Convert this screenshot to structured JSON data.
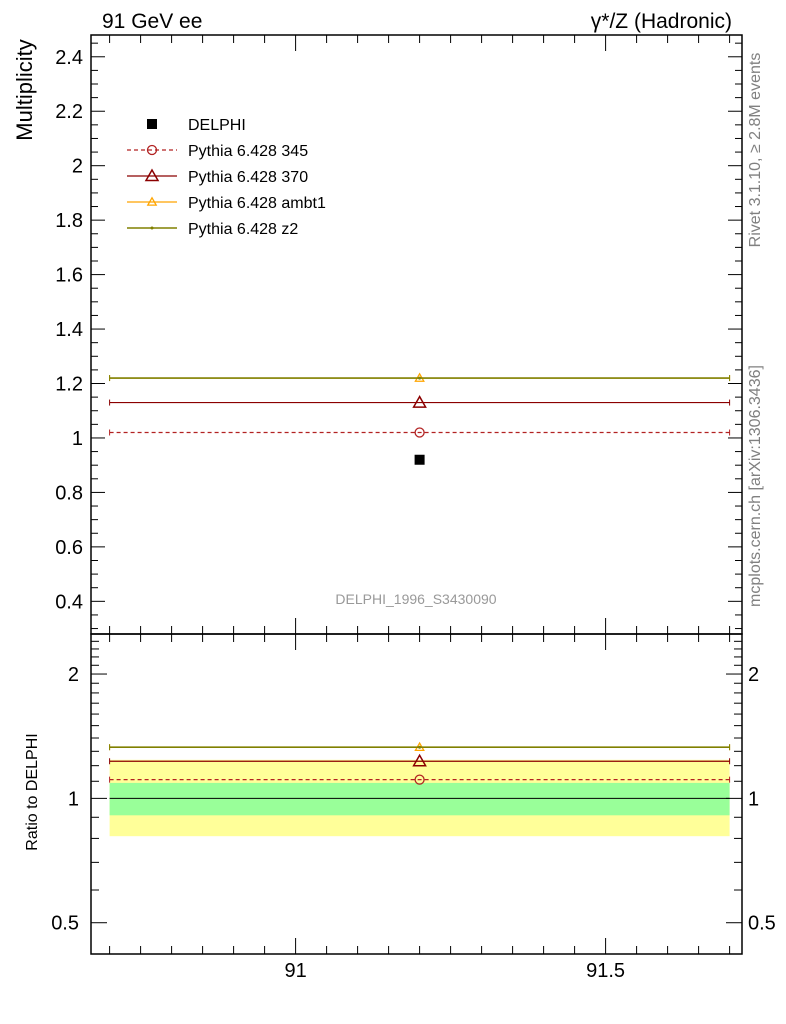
{
  "header": {
    "left": "91 GeV ee",
    "right": "γ*/Z (Hadronic)"
  },
  "side_labels": {
    "rivet": "Rivet 3.1.10, ≥ 2.8M events",
    "mcplots": "mcplots.cern.ch [arXiv:1306.3436]"
  },
  "colors": {
    "data": "#000000",
    "p345": "#b22222",
    "p370": "#8b0000",
    "ambt1": "#ffa500",
    "z2": "#808000",
    "band_inner": "#99ff99",
    "band_outer": "#ffff99"
  },
  "chart_data": [
    {
      "type": "scatter",
      "panel": "main",
      "ylabel": "Multiplicity",
      "annotation": "DELPHI_1996_S3430090",
      "xlim": [
        90.67,
        91.72
      ],
      "ylim": [
        0.28,
        2.48
      ],
      "yticks": [
        0.4,
        0.6,
        0.8,
        1,
        1.2,
        1.4,
        1.6,
        1.8,
        2,
        2.2,
        2.4
      ],
      "ytick_labels": [
        "0.4",
        "0.6",
        "0.8",
        "1",
        "1.2",
        "1.4",
        "1.6",
        "1.8",
        "2",
        "2.2",
        "2.4"
      ],
      "legend_position": "top-left",
      "series": [
        {
          "name": "DELPHI",
          "key": "data",
          "x": [
            91.2
          ],
          "y": [
            0.92
          ],
          "xerr": null
        },
        {
          "name": "Pythia 6.428 345",
          "key": "p345",
          "x": [
            91.2
          ],
          "y": [
            1.02
          ],
          "xrange": [
            90.7,
            91.7
          ]
        },
        {
          "name": "Pythia 6.428 370",
          "key": "p370",
          "x": [
            91.2
          ],
          "y": [
            1.13
          ],
          "xrange": [
            90.7,
            91.7
          ]
        },
        {
          "name": "Pythia 6.428 ambt1",
          "key": "ambt1",
          "x": [
            91.2
          ],
          "y": [
            1.22
          ],
          "xrange": [
            90.7,
            91.7
          ]
        },
        {
          "name": "Pythia 6.428 z2",
          "key": "z2",
          "x": [
            91.2
          ],
          "y": [
            1.22
          ],
          "xrange": [
            90.7,
            91.7
          ]
        }
      ]
    },
    {
      "type": "scatter",
      "panel": "ratio",
      "ylabel": "Ratio to DELPHI",
      "xlabel": "",
      "xlim": [
        90.67,
        91.72
      ],
      "ylim": [
        0.42,
        2.5
      ],
      "ytick_labels_shown": [
        "0.5",
        "1",
        "2"
      ],
      "xticks": [
        91,
        91.5
      ],
      "xtick_labels": [
        "91",
        "91.5"
      ],
      "reference_line": 1,
      "band_inner": [
        0.91,
        1.09
      ],
      "band_outer": [
        0.81,
        1.24
      ],
      "series": [
        {
          "name": "Pythia 6.428 345",
          "key": "p345",
          "y": [
            1.11
          ]
        },
        {
          "name": "Pythia 6.428 370",
          "key": "p370",
          "y": [
            1.23
          ]
        },
        {
          "name": "Pythia 6.428 ambt1",
          "key": "ambt1",
          "y": [
            1.33
          ]
        },
        {
          "name": "Pythia 6.428 z2",
          "key": "z2",
          "y": [
            1.33
          ]
        }
      ]
    }
  ]
}
